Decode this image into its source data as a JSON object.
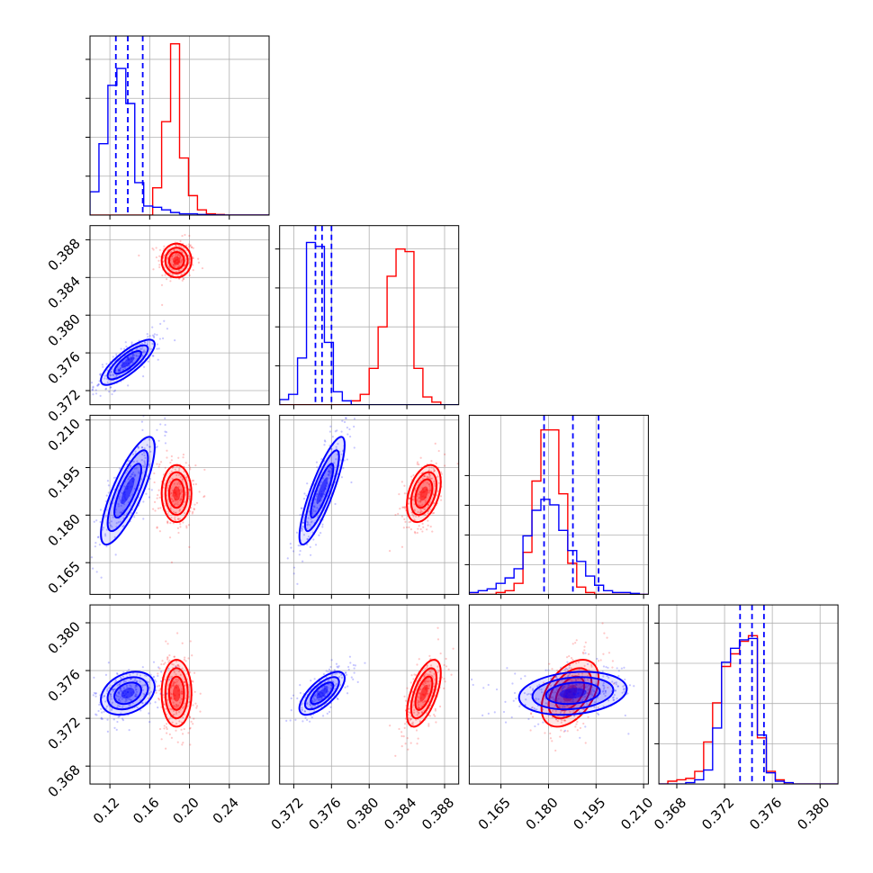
{
  "chart_data": {
    "type": "corner",
    "colors": {
      "series_a": "#0000ff",
      "series_b": "#ff0000",
      "grid": "#b0b0b0"
    },
    "grid": true,
    "parameters": [
      {
        "range": [
          0.1,
          0.28
        ],
        "ticks": [
          0.12,
          0.16,
          0.2,
          0.24
        ],
        "tick_labels": [
          "0.12",
          "0.16",
          "0.20",
          "0.24"
        ]
      },
      {
        "range": [
          0.3705,
          0.3895
        ],
        "ticks": [
          0.372,
          0.376,
          0.38,
          0.384,
          0.388
        ],
        "tick_labels": [
          "0.372",
          "0.376",
          "0.380",
          "0.384",
          "0.388"
        ]
      },
      {
        "range": [
          0.155,
          0.2115
        ],
        "ticks": [
          0.165,
          0.18,
          0.195,
          0.21
        ],
        "tick_labels": [
          "0.165",
          "0.180",
          "0.195",
          "0.210"
        ]
      },
      {
        "range": [
          0.3665,
          0.3815
        ],
        "ticks": [
          0.368,
          0.372,
          0.376,
          0.38
        ],
        "tick_labels": [
          "0.368",
          "0.372",
          "0.376",
          "0.380"
        ]
      }
    ],
    "series": [
      {
        "color": "#0000ff",
        "quantiles": [
          [
            0.126,
            0.138,
            0.153
          ],
          [
            0.3743,
            0.375,
            0.376
          ],
          [
            0.1786,
            0.1877,
            0.1958
          ],
          [
            0.3733,
            0.3743,
            0.3753
          ]
        ],
        "means": [
          0.138,
          0.375,
          0.1877,
          0.3741
        ],
        "sds": [
          0.0135,
          0.0012,
          0.0085,
          0.0009
        ],
        "corr": [
          [
            1.0,
            0.8,
            0.8,
            0.3
          ],
          [
            0.8,
            1.0,
            0.85,
            0.7
          ],
          [
            0.8,
            0.85,
            1.0,
            0.2
          ],
          [
            0.3,
            0.7,
            0.2,
            1.0
          ]
        ]
      },
      {
        "color": "#ff0000",
        "quantiles": [
          null,
          null,
          null,
          null
        ],
        "means": [
          0.187,
          0.3858,
          0.1868,
          0.3741
        ],
        "sds": [
          0.0075,
          0.0009,
          0.0045,
          0.0014
        ],
        "corr": [
          [
            1.0,
            0.0,
            0.0,
            0.0
          ],
          [
            0.0,
            1.0,
            0.4,
            0.6
          ],
          [
            0.0,
            0.4,
            1.0,
            0.45
          ],
          [
            0.0,
            0.6,
            0.45,
            1.0
          ]
        ]
      }
    ],
    "histograms": [
      {
        "blue": {
          "start": 0.1,
          "width": 0.009,
          "counts": [
            0.18,
            0.55,
            1.0,
            1.13,
            0.86,
            0.25,
            0.07,
            0.06,
            0.04,
            0.02,
            0.01,
            0.01,
            0.005,
            0.002,
            0.001,
            0,
            0,
            0,
            0,
            0
          ]
        },
        "red": {
          "start": 0.1,
          "width": 0.009,
          "counts": [
            0,
            0,
            0,
            0,
            0,
            0,
            0,
            0.21,
            0.72,
            1.32,
            0.44,
            0.15,
            0.04,
            0.01,
            0.005,
            0,
            0,
            0,
            0,
            0
          ]
        },
        "ymax": 1.38
      },
      {
        "blue": {
          "start": 0.3705,
          "width": 0.00095,
          "counts": [
            0.04,
            0.08,
            0.36,
            1.25,
            1.22,
            0.48,
            0.1,
            0.03,
            0,
            0,
            0,
            0,
            0,
            0,
            0,
            0,
            0,
            0,
            0,
            0
          ]
        },
        "red": {
          "start": 0.3705,
          "width": 0.00095,
          "counts": [
            0,
            0,
            0,
            0,
            0,
            0,
            0,
            0,
            0.03,
            0.08,
            0.28,
            0.6,
            0.99,
            1.2,
            1.18,
            0.28,
            0.06,
            0.02,
            0,
            0
          ]
        },
        "ymax": 1.38
      },
      {
        "blue": {
          "start": 0.155,
          "width": 0.002825,
          "counts": [
            0.01,
            0.02,
            0.03,
            0.06,
            0.09,
            0.14,
            0.32,
            0.46,
            0.52,
            0.49,
            0.35,
            0.24,
            0.18,
            0.1,
            0.05,
            0.02,
            0.01,
            0.01,
            0.005,
            0
          ]
        },
        "red": {
          "start": 0.155,
          "width": 0.002825,
          "counts": [
            0,
            0,
            0,
            0.01,
            0.02,
            0.06,
            0.23,
            0.62,
            0.9,
            0.9,
            0.55,
            0.17,
            0.04,
            0.01,
            0,
            0,
            0,
            0,
            0,
            0
          ]
        },
        "ymax": 0.98
      },
      {
        "blue": {
          "start": 0.3665,
          "width": 0.00075,
          "counts": [
            0,
            0,
            0,
            0.01,
            0.03,
            0.1,
            0.4,
            0.87,
            0.97,
            1.03,
            1.04,
            0.35,
            0.08,
            0.02,
            0.01,
            0,
            0,
            0,
            0,
            0
          ]
        },
        "red": {
          "start": 0.3665,
          "width": 0.00075,
          "counts": [
            0,
            0.02,
            0.03,
            0.04,
            0.09,
            0.3,
            0.58,
            0.84,
            0.93,
            1.02,
            1.06,
            0.33,
            0.09,
            0.03,
            0,
            0,
            0,
            0,
            0,
            0
          ]
        },
        "ymax": 1.28
      }
    ]
  }
}
